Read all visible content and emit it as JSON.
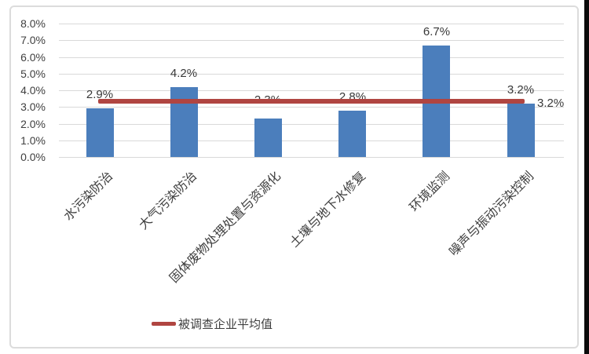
{
  "chart_data": {
    "type": "bar",
    "title": "",
    "categories": [
      "水污染防治",
      "大气污染防治",
      "固体废物处理处置与资源化",
      "土壤与地下水修复",
      "环境监测",
      "噪声与振动污染控制"
    ],
    "values": [
      2.9,
      4.2,
      2.3,
      2.8,
      6.7,
      3.2
    ],
    "value_labels": [
      "2.9%",
      "4.2%",
      "2.3%",
      "2.8%",
      "6.7%",
      "3.2%"
    ],
    "y_ticks": [
      "8.0%",
      "7.0%",
      "6.0%",
      "5.0%",
      "4.0%",
      "3.0%",
      "2.0%",
      "1.0%",
      "0.0%"
    ],
    "ylim": [
      0,
      8
    ],
    "grid": true,
    "bar_color": "#4b7ebc",
    "average_line": {
      "value": 3.2,
      "label": "3.2%",
      "legend_label": "被调查企业平均值",
      "color": "#b04541"
    },
    "legend_position": "bottom"
  }
}
